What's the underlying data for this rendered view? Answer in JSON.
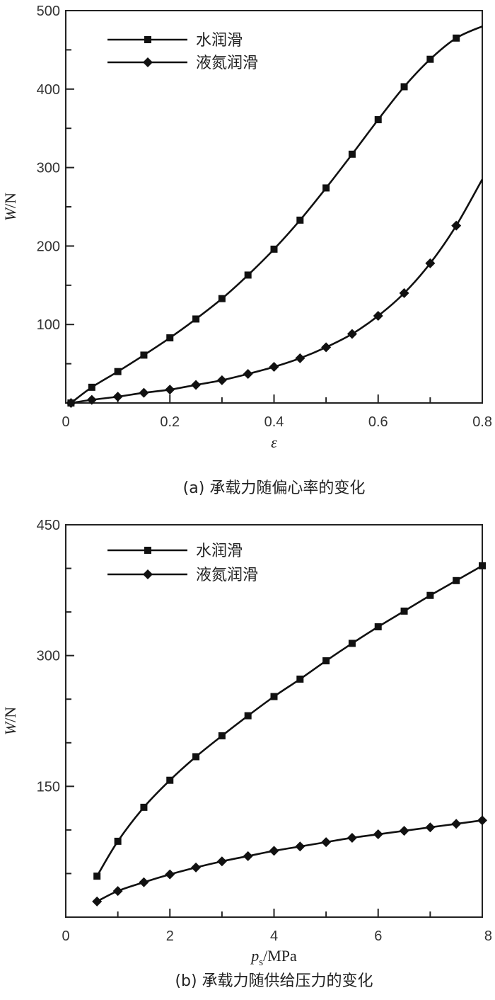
{
  "chart_data": [
    {
      "type": "line",
      "caption": "(a) 承载力随偏心率的变化",
      "xlabel": "ε",
      "ylabel": "W/N",
      "xlim": [
        0,
        0.8
      ],
      "ylim": [
        0,
        500
      ],
      "xticks": [
        0,
        0.2,
        0.4,
        0.6,
        0.8
      ],
      "xtick_labels": [
        "0",
        "0.2",
        "0.4",
        "0.6",
        "0.8"
      ],
      "yticks": [
        100,
        200,
        300,
        400,
        500
      ],
      "ytick_labels": [
        "100",
        "200",
        "300",
        "400",
        "500"
      ],
      "legend_position": "top-left",
      "series": [
        {
          "name": "水润滑",
          "marker": "square",
          "x": [
            0.01,
            0.05,
            0.1,
            0.15,
            0.2,
            0.25,
            0.3,
            0.35,
            0.4,
            0.45,
            0.5,
            0.55,
            0.6,
            0.65,
            0.7,
            0.75
          ],
          "y": [
            0,
            20,
            40,
            61,
            83,
            107,
            133,
            163,
            196,
            233,
            274,
            317,
            361,
            403,
            438,
            465
          ],
          "end_point": [
            0.8,
            480
          ]
        },
        {
          "name": "液氮润滑",
          "marker": "diamond",
          "x": [
            0.01,
            0.05,
            0.1,
            0.15,
            0.2,
            0.25,
            0.3,
            0.35,
            0.4,
            0.45,
            0.5,
            0.55,
            0.6,
            0.65,
            0.7,
            0.75
          ],
          "y": [
            0,
            4,
            8,
            13,
            17,
            23,
            29,
            37,
            46,
            57,
            71,
            88,
            111,
            140,
            178,
            226
          ],
          "end_point": [
            0.8,
            285
          ]
        }
      ]
    },
    {
      "type": "line",
      "caption": "(b) 承载力随供给压力的变化",
      "xlabel_main": "p",
      "xlabel_sub": "s",
      "xlabel_unit": "/MPa",
      "ylabel": "W/N",
      "xlim": [
        0,
        8
      ],
      "ylim": [
        0,
        450
      ],
      "xticks": [
        0,
        2,
        4,
        6,
        8
      ],
      "xtick_labels": [
        "0",
        "2",
        "4",
        "6",
        "8"
      ],
      "yticks": [
        150,
        300,
        450
      ],
      "ytick_labels": [
        "150",
        "300",
        "450"
      ],
      "minor_yticks": [
        50,
        100,
        200,
        250,
        350,
        400
      ],
      "legend_position": "top-left",
      "series": [
        {
          "name": "水润滑",
          "marker": "square",
          "x": [
            0.6,
            1,
            1.5,
            2,
            2.5,
            3,
            3.5,
            4,
            4.5,
            5,
            5.5,
            6,
            6.5,
            7,
            7.5,
            8
          ],
          "y": [
            47,
            87,
            126,
            157,
            184,
            208,
            231,
            253,
            273,
            294,
            314,
            333,
            351,
            369,
            386,
            403
          ]
        },
        {
          "name": "液氮润滑",
          "marker": "diamond",
          "x": [
            0.6,
            1,
            1.5,
            2,
            2.5,
            3,
            3.5,
            4,
            4.5,
            5,
            5.5,
            6,
            6.5,
            7,
            7.5,
            8
          ],
          "y": [
            18,
            30,
            40,
            49,
            57,
            64,
            70,
            76,
            81,
            86,
            91,
            95,
            99,
            103,
            107,
            111
          ]
        }
      ]
    }
  ]
}
